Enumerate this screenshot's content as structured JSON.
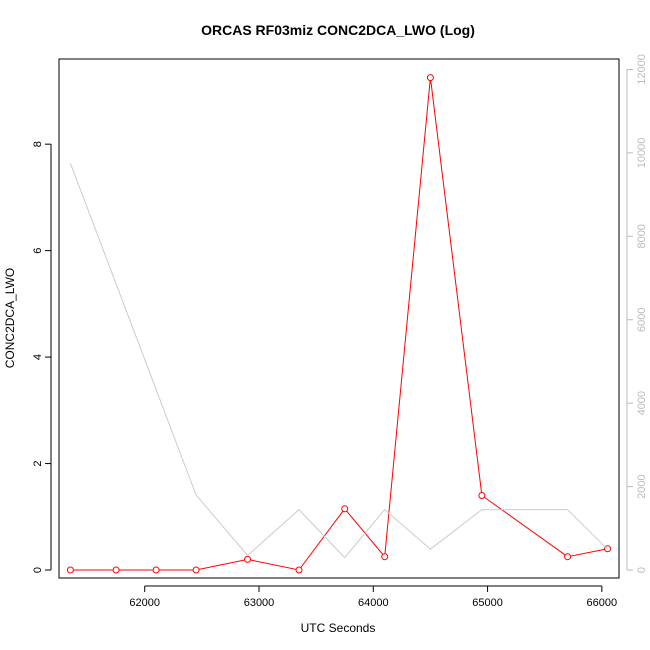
{
  "chart_data": {
    "type": "line",
    "title": "ORCAS RF03miz CONC2DCA_LWO (Log)",
    "xlabel": "UTC Seconds",
    "ylabel": "CONC2DCA_LWO",
    "xlim": [
      61250,
      66150
    ],
    "ylim": [
      -0.15,
      9.6
    ],
    "y2lim": [
      -190,
      12250
    ],
    "x_ticks": [
      62000,
      63000,
      64000,
      65000,
      66000
    ],
    "y_ticks": [
      0,
      2,
      4,
      6,
      8
    ],
    "y2_ticks": [
      0,
      2000,
      4000,
      6000,
      8000,
      10000,
      12000
    ],
    "grid": false,
    "series": [
      {
        "axis": "left",
        "color": "#ff0000",
        "marker": "circle",
        "x": [
          61350,
          61750,
          62100,
          62450,
          62900,
          63350,
          63750,
          64100,
          64500,
          64950,
          65700,
          66050
        ],
        "y": [
          0.0,
          0.0,
          0.0,
          0.0,
          0.2,
          0.0,
          1.15,
          0.25,
          9.25,
          1.4,
          0.25,
          0.4
        ]
      },
      {
        "axis": "right",
        "color": "#cccccc",
        "marker": "none",
        "x": [
          61350,
          62450,
          62900,
          63350,
          63750,
          64100,
          64500,
          64950,
          65700,
          66050
        ],
        "y": [
          9750,
          1800,
          350,
          1450,
          300,
          1450,
          500,
          1450,
          1450,
          500
        ]
      }
    ]
  }
}
